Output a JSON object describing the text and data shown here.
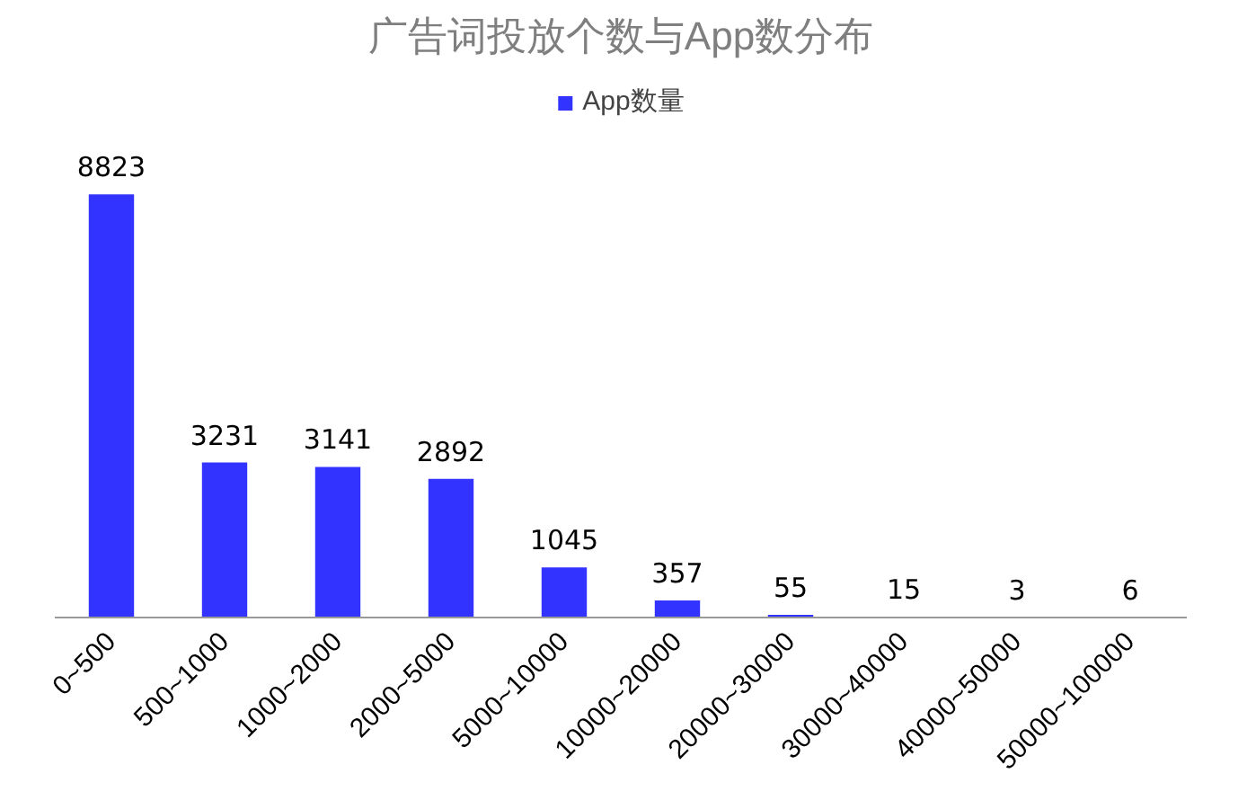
{
  "chart_data": {
    "type": "bar",
    "title": "广告词投放个数与App数分布",
    "categories": [
      "0~500",
      "500~1000",
      "1000~2000",
      "2000~5000",
      "5000~10000",
      "10000~20000",
      "20000~30000",
      "30000~40000",
      "40000~50000",
      "50000~100000"
    ],
    "series": [
      {
        "name": "App数量",
        "color": "#3333ff",
        "values": [
          8823,
          3231,
          3141,
          2892,
          1045,
          357,
          55,
          15,
          3,
          6
        ]
      }
    ],
    "data_labels": true,
    "legend": "top"
  }
}
